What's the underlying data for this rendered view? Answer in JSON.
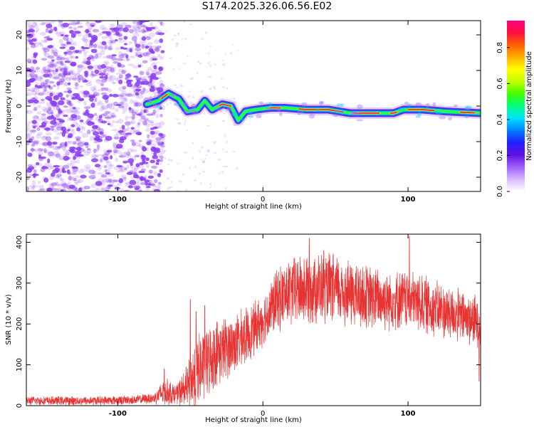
{
  "page": {
    "title": "S174.2025.326.06.56.E02"
  },
  "colors": {
    "snr_line": "#e83333",
    "speckle": "#8a3df0",
    "colorbar": [
      "#ffffff",
      "#d8b8ff",
      "#a060ff",
      "#6010e0",
      "#2020ff",
      "#0080ff",
      "#00e0ff",
      "#00ff80",
      "#40ff00",
      "#c0ff00",
      "#ffff00",
      "#ffb000",
      "#ff6000",
      "#ff1040",
      "#ff0080"
    ]
  },
  "chart_data": [
    {
      "type": "heatmap",
      "name": "spectrogram",
      "xlabel": "Height of straight line (km)",
      "ylabel": "Frequency (Hz)",
      "xlim": [
        -163,
        150
      ],
      "ylim": [
        -24,
        24
      ],
      "xticks": [
        -100,
        0,
        100
      ],
      "xtick_labels": [
        "-100",
        "0",
        "100"
      ],
      "yticks": [
        -20,
        -10,
        0,
        10,
        20
      ],
      "ytick_labels": [
        "-20",
        "-10",
        "0",
        "10",
        "20"
      ],
      "noise_region_x": [
        -163,
        -77
      ],
      "signal_track": [
        {
          "x": -80,
          "y": 0.5
        },
        {
          "x": -72,
          "y": 1.5
        },
        {
          "x": -65,
          "y": 3.5
        },
        {
          "x": -58,
          "y": 2.0
        },
        {
          "x": -52,
          "y": -1.5
        },
        {
          "x": -45,
          "y": -1.0
        },
        {
          "x": -40,
          "y": 1.5
        },
        {
          "x": -35,
          "y": -1.0
        },
        {
          "x": -28,
          "y": 0.5
        },
        {
          "x": -22,
          "y": 0.0
        },
        {
          "x": -17,
          "y": -4.0
        },
        {
          "x": -12,
          "y": -1.5
        },
        {
          "x": -5,
          "y": -1.0
        },
        {
          "x": 5,
          "y": -0.5
        },
        {
          "x": 15,
          "y": -0.5
        },
        {
          "x": 30,
          "y": -1.0
        },
        {
          "x": 45,
          "y": -1.0
        },
        {
          "x": 60,
          "y": -2.0
        },
        {
          "x": 75,
          "y": -2.0
        },
        {
          "x": 90,
          "y": -2.0
        },
        {
          "x": 97,
          "y": -1.0
        },
        {
          "x": 110,
          "y": -1.0
        },
        {
          "x": 125,
          "y": -1.5
        },
        {
          "x": 150,
          "y": -2.0
        }
      ],
      "colorbar": {
        "label": "Normalized spectral amplitude",
        "range": [
          0,
          0.95
        ],
        "ticks": [
          0.0,
          0.2,
          0.4,
          0.6,
          0.8
        ],
        "tick_labels": [
          "0.0",
          "0.2",
          "0.4",
          "0.6",
          "0.8"
        ]
      }
    },
    {
      "type": "line",
      "name": "snr",
      "xlabel": "Height of straight line (km)",
      "ylabel": "SNR (10 * v/v)",
      "xlim": [
        -163,
        150
      ],
      "ylim": [
        0,
        420
      ],
      "xticks": [
        -100,
        0,
        100
      ],
      "xtick_labels": [
        "-100",
        "0",
        "100"
      ],
      "yticks": [
        0,
        100,
        200,
        300,
        400
      ],
      "ytick_labels": [
        "0",
        "100",
        "200",
        "300",
        "400"
      ],
      "envelope": {
        "x": [
          -163,
          -120,
          -90,
          -75,
          -68,
          -60,
          -52,
          -46,
          -40,
          -32,
          -20,
          -10,
          0,
          10,
          20,
          35,
          50,
          65,
          80,
          90,
          100,
          110,
          125,
          140,
          150
        ],
        "mean": [
          12,
          12,
          14,
          18,
          35,
          28,
          45,
          80,
          100,
          130,
          150,
          175,
          210,
          260,
          280,
          290,
          285,
          270,
          260,
          260,
          260,
          250,
          230,
          215,
          205
        ],
        "amp": [
          12,
          12,
          12,
          15,
          40,
          25,
          60,
          110,
          95,
          90,
          80,
          75,
          70,
          85,
          95,
          100,
          95,
          90,
          85,
          80,
          80,
          80,
          75,
          70,
          70
        ]
      },
      "spikes": [
        {
          "x": -68,
          "y": 90
        },
        {
          "x": -50,
          "y": 260
        },
        {
          "x": -46,
          "y": 230
        },
        {
          "x": -40,
          "y": 245
        },
        {
          "x": 32,
          "y": 410
        },
        {
          "x": 42,
          "y": 380
        },
        {
          "x": 101,
          "y": 415
        },
        {
          "x": 149,
          "y": 60
        }
      ]
    }
  ]
}
